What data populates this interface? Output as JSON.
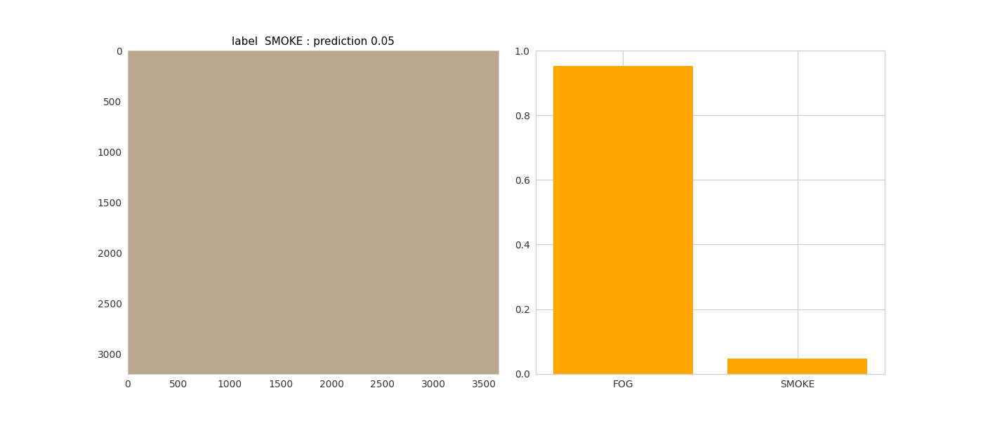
{
  "chart_data": [
    {
      "type": "image",
      "title": "label  SMOKE : prediction 0.05",
      "xlim": [
        0,
        3640
      ],
      "ylim": [
        3200,
        0
      ],
      "xticks": [
        0,
        500,
        1000,
        1500,
        2000,
        2500,
        3000,
        3500
      ],
      "yticks": [
        0,
        500,
        1000,
        1500,
        2000,
        2500,
        3000
      ],
      "grid": false
    },
    {
      "type": "bar",
      "categories": [
        "FOG",
        "SMOKE"
      ],
      "values": [
        0.952,
        0.048
      ],
      "color": "#ffa500",
      "ylim": [
        0,
        1
      ],
      "yticks": [
        {
          "value": 0,
          "label": "0.0"
        },
        {
          "value": 0.2,
          "label": "0.2"
        },
        {
          "value": 0.4,
          "label": "0.4"
        },
        {
          "value": 0.6,
          "label": "0.6"
        },
        {
          "value": 0.8,
          "label": "0.8"
        },
        {
          "value": 1,
          "label": "1.0"
        }
      ],
      "grid": true
    }
  ]
}
